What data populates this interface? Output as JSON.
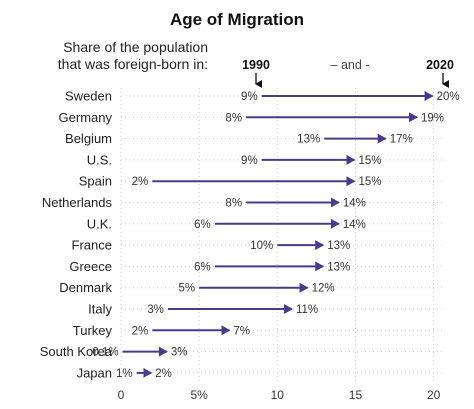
{
  "chart_data": {
    "type": "arrow_range",
    "title": "Age of Migration",
    "subtitle_lines": [
      "Share of the population",
      "that was foreign-born in:"
    ],
    "start_label": "1990",
    "end_label": "2020",
    "connector_label": "– and -",
    "x_ticks": [
      0,
      5,
      10,
      15,
      20
    ],
    "x_tick_labels": [
      "0",
      "5%",
      "10",
      "15",
      "20"
    ],
    "xlim": [
      0,
      20.6
    ],
    "grid": true,
    "color": "#4b3a8c",
    "value_suffix": "%",
    "rows": [
      {
        "country": "Sweden",
        "start": 9,
        "end": 20
      },
      {
        "country": "Germany",
        "start": 8,
        "end": 19
      },
      {
        "country": "Belgium",
        "start": 13,
        "end": 17
      },
      {
        "country": "U.S.",
        "start": 9,
        "end": 15
      },
      {
        "country": "Spain",
        "start": 2,
        "end": 15
      },
      {
        "country": "Netherlands",
        "start": 8,
        "end": 14
      },
      {
        "country": "U.K.",
        "start": 6,
        "end": 14
      },
      {
        "country": "France",
        "start": 10,
        "end": 13
      },
      {
        "country": "Greece",
        "start": 6,
        "end": 13
      },
      {
        "country": "Denmark",
        "start": 5,
        "end": 12
      },
      {
        "country": "Italy",
        "start": 3,
        "end": 11
      },
      {
        "country": "Turkey",
        "start": 2,
        "end": 7
      },
      {
        "country": "South Korea",
        "start": 0.1,
        "end": 3
      },
      {
        "country": "Japan",
        "start": 1,
        "end": 2
      }
    ]
  }
}
